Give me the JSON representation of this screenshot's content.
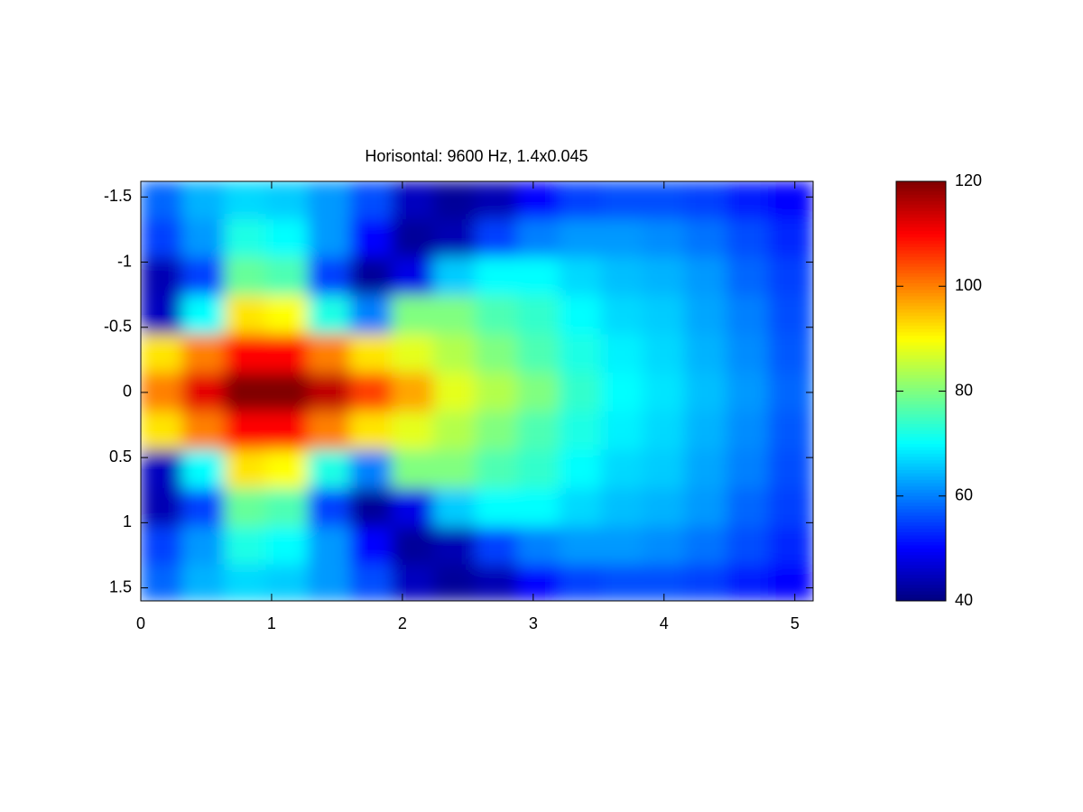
{
  "chart_data": {
    "type": "heatmap",
    "title": "Horisontal: 9600 Hz, 1.4x0.045",
    "colormap": "jet",
    "clim": [
      40,
      120
    ],
    "colorbar_ticks": [
      40,
      60,
      80,
      100,
      120
    ],
    "xlim": [
      0,
      5.14
    ],
    "xticks": [
      0,
      1,
      2,
      3,
      4,
      5
    ],
    "ylim": [
      -1.62,
      1.6
    ],
    "yticks": [
      -1.5,
      -1,
      -0.5,
      0,
      0.5,
      1,
      1.5
    ],
    "y_reversed": true,
    "x": [
      0.16,
      0.48,
      0.8,
      1.12,
      1.44,
      1.76,
      2.08,
      2.4,
      2.72,
      3.04,
      3.36,
      3.68,
      4.0,
      4.32,
      4.64,
      4.96
    ],
    "y": [
      -1.47,
      -1.18,
      -0.89,
      -0.59,
      -0.3,
      0,
      0.3,
      0.59,
      0.89,
      1.18,
      1.47
    ],
    "z": [
      [
        58,
        64,
        67,
        66,
        62,
        56,
        45,
        42,
        44,
        50,
        55,
        56,
        56,
        55,
        52,
        50
      ],
      [
        55,
        62,
        72,
        70,
        62,
        50,
        42,
        44,
        55,
        60,
        62,
        62,
        61,
        59,
        56,
        53
      ],
      [
        44,
        55,
        78,
        76,
        55,
        42,
        48,
        66,
        70,
        70,
        67,
        65,
        64,
        62,
        58,
        55
      ],
      [
        45,
        70,
        92,
        90,
        72,
        60,
        80,
        80,
        76,
        74,
        70,
        67,
        66,
        63,
        60,
        56
      ],
      [
        92,
        100,
        110,
        110,
        100,
        92,
        88,
        84,
        80,
        76,
        72,
        69,
        67,
        64,
        61,
        57
      ],
      [
        100,
        112,
        120,
        120,
        115,
        105,
        97,
        88,
        84,
        80,
        74,
        70,
        68,
        65,
        62,
        58
      ],
      [
        92,
        100,
        110,
        110,
        100,
        92,
        88,
        84,
        80,
        76,
        72,
        69,
        67,
        64,
        61,
        57
      ],
      [
        45,
        70,
        92,
        90,
        72,
        60,
        80,
        80,
        76,
        74,
        70,
        67,
        66,
        63,
        60,
        56
      ],
      [
        44,
        55,
        78,
        76,
        55,
        42,
        48,
        66,
        70,
        70,
        67,
        65,
        64,
        62,
        58,
        55
      ],
      [
        55,
        62,
        72,
        70,
        62,
        50,
        42,
        44,
        55,
        60,
        62,
        62,
        61,
        59,
        56,
        53
      ],
      [
        58,
        64,
        67,
        66,
        62,
        56,
        45,
        42,
        44,
        50,
        55,
        56,
        56,
        55,
        52,
        50
      ]
    ]
  }
}
